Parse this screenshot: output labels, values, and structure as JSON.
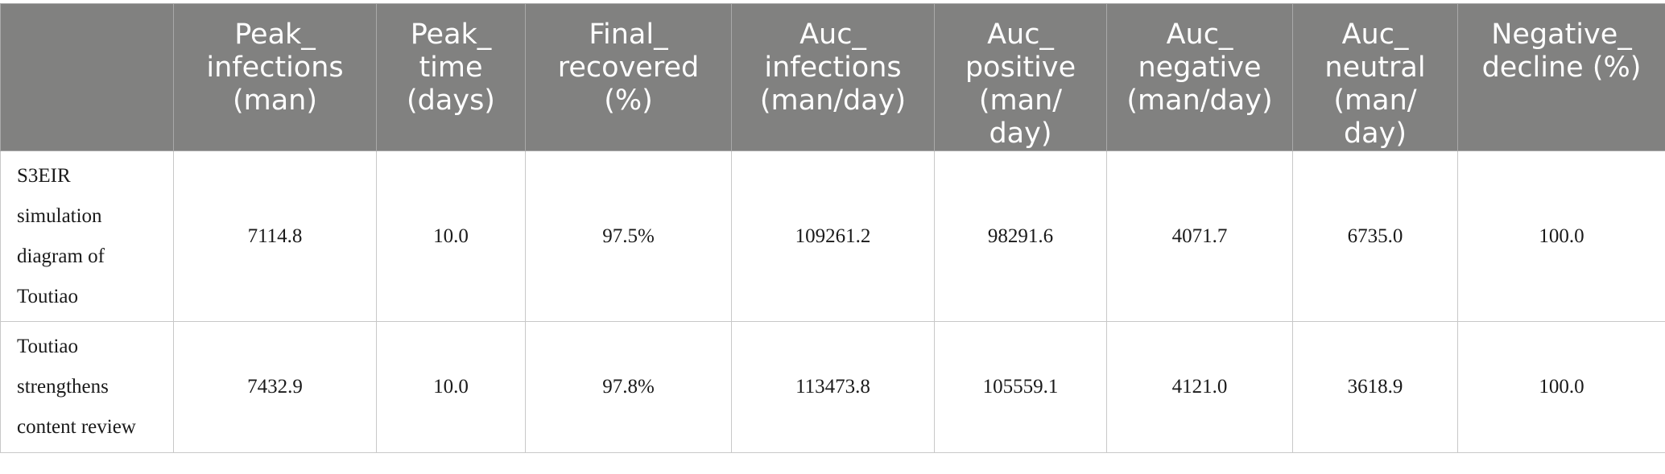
{
  "table": {
    "headers": [
      {
        "lines": [
          ""
        ]
      },
      {
        "lines": [
          "Peak_",
          "infections",
          "(man)"
        ]
      },
      {
        "lines": [
          "Peak_",
          "time",
          "(days)"
        ]
      },
      {
        "lines": [
          "Final_",
          "recovered",
          "(%)"
        ]
      },
      {
        "lines": [
          "Auc_",
          "infections",
          "(man/day)"
        ]
      },
      {
        "lines": [
          "Auc_",
          "positive",
          "(man/",
          "day)"
        ]
      },
      {
        "lines": [
          "Auc_",
          "negative",
          "(man/day)"
        ]
      },
      {
        "lines": [
          "Auc_",
          "neutral",
          "(man/",
          "day)"
        ]
      },
      {
        "lines": [
          "Negative_",
          "decline (%)"
        ]
      }
    ],
    "rows": [
      {
        "label_lines": [
          "S3EIR",
          "simulation",
          "diagram of",
          "Toutiao"
        ],
        "cells": [
          "7114.8",
          "10.0",
          "97.5%",
          "109261.2",
          "98291.6",
          "4071.7",
          "6735.0",
          "100.0"
        ]
      },
      {
        "label_lines": [
          "Toutiao",
          "strengthens",
          "content review"
        ],
        "cells": [
          "7432.9",
          "10.0",
          "97.8%",
          "113473.8",
          "105559.1",
          "4121.0",
          "3618.9",
          "100.0"
        ]
      }
    ]
  }
}
